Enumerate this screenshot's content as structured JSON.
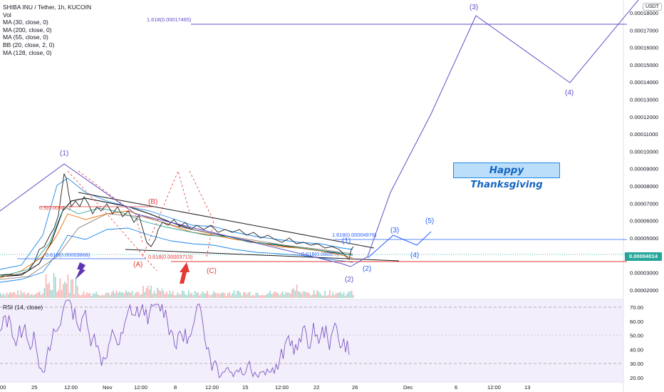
{
  "legend": {
    "title": "SHIBA INU / Tether, 1h, KUCOIN",
    "lines": [
      "Vol",
      "MA (30, close, 0)",
      "MA (200, close, 0)",
      "MA (55, close, 0)",
      "BB (20, close, 2, 0)",
      "MA (128, close, 0)"
    ]
  },
  "currency_badge": "USDT",
  "last_price": "0.00004014",
  "price_axis": [
    "0.00018000",
    "0.00017000",
    "0.00016000",
    "0.00015000",
    "0.00014000",
    "0.00013000",
    "0.00012000",
    "0.00011000",
    "0.00010000",
    "0.00009000",
    "0.00008000",
    "0.00007000",
    "0.00006000",
    "0.00005000",
    "0.00004000",
    "0.00003000",
    "0.00002000"
  ],
  "rsi": {
    "label": "RSI (14, close)",
    "axis": [
      "70.00",
      "60.00",
      "50.00",
      "40.00",
      "30.00",
      "20.00"
    ]
  },
  "time_axis": [
    "00",
    "25",
    "12:00",
    "Nov",
    "12:00",
    "8",
    "12:00",
    "15",
    "12:00",
    "22",
    "26",
    "Dec",
    "6",
    "12:00",
    "13"
  ],
  "annotation": "Happy Thanksgiving",
  "waves": {
    "w1_top": "(1)",
    "wA": "(A)",
    "wB": "(B)",
    "wC": "(C)",
    "w1_small": "(1)",
    "w2_small": "(2)",
    "w2": "(2)",
    "w3": "(3)",
    "w4": "(4)",
    "w5": "(5)",
    "w3_big": "(3)",
    "w4_big": "(4)"
  },
  "fib_labels": {
    "top": "1.618(0.00017465)",
    "mid": "1.618(0.00004976)",
    "half": "0.5(0.0000...)",
    "low_left": "0.618(0.00003868)",
    "low_mid": "0.618(0.00003713)",
    "low_right": "0.618(0.0000...)"
  },
  "colors": {
    "wave_purple": "#5e4fc7",
    "correction_red": "#e53935",
    "price_green": "#26a69a",
    "fib_blue": "#2962ff",
    "rsi_line": "#7e57c2"
  }
}
